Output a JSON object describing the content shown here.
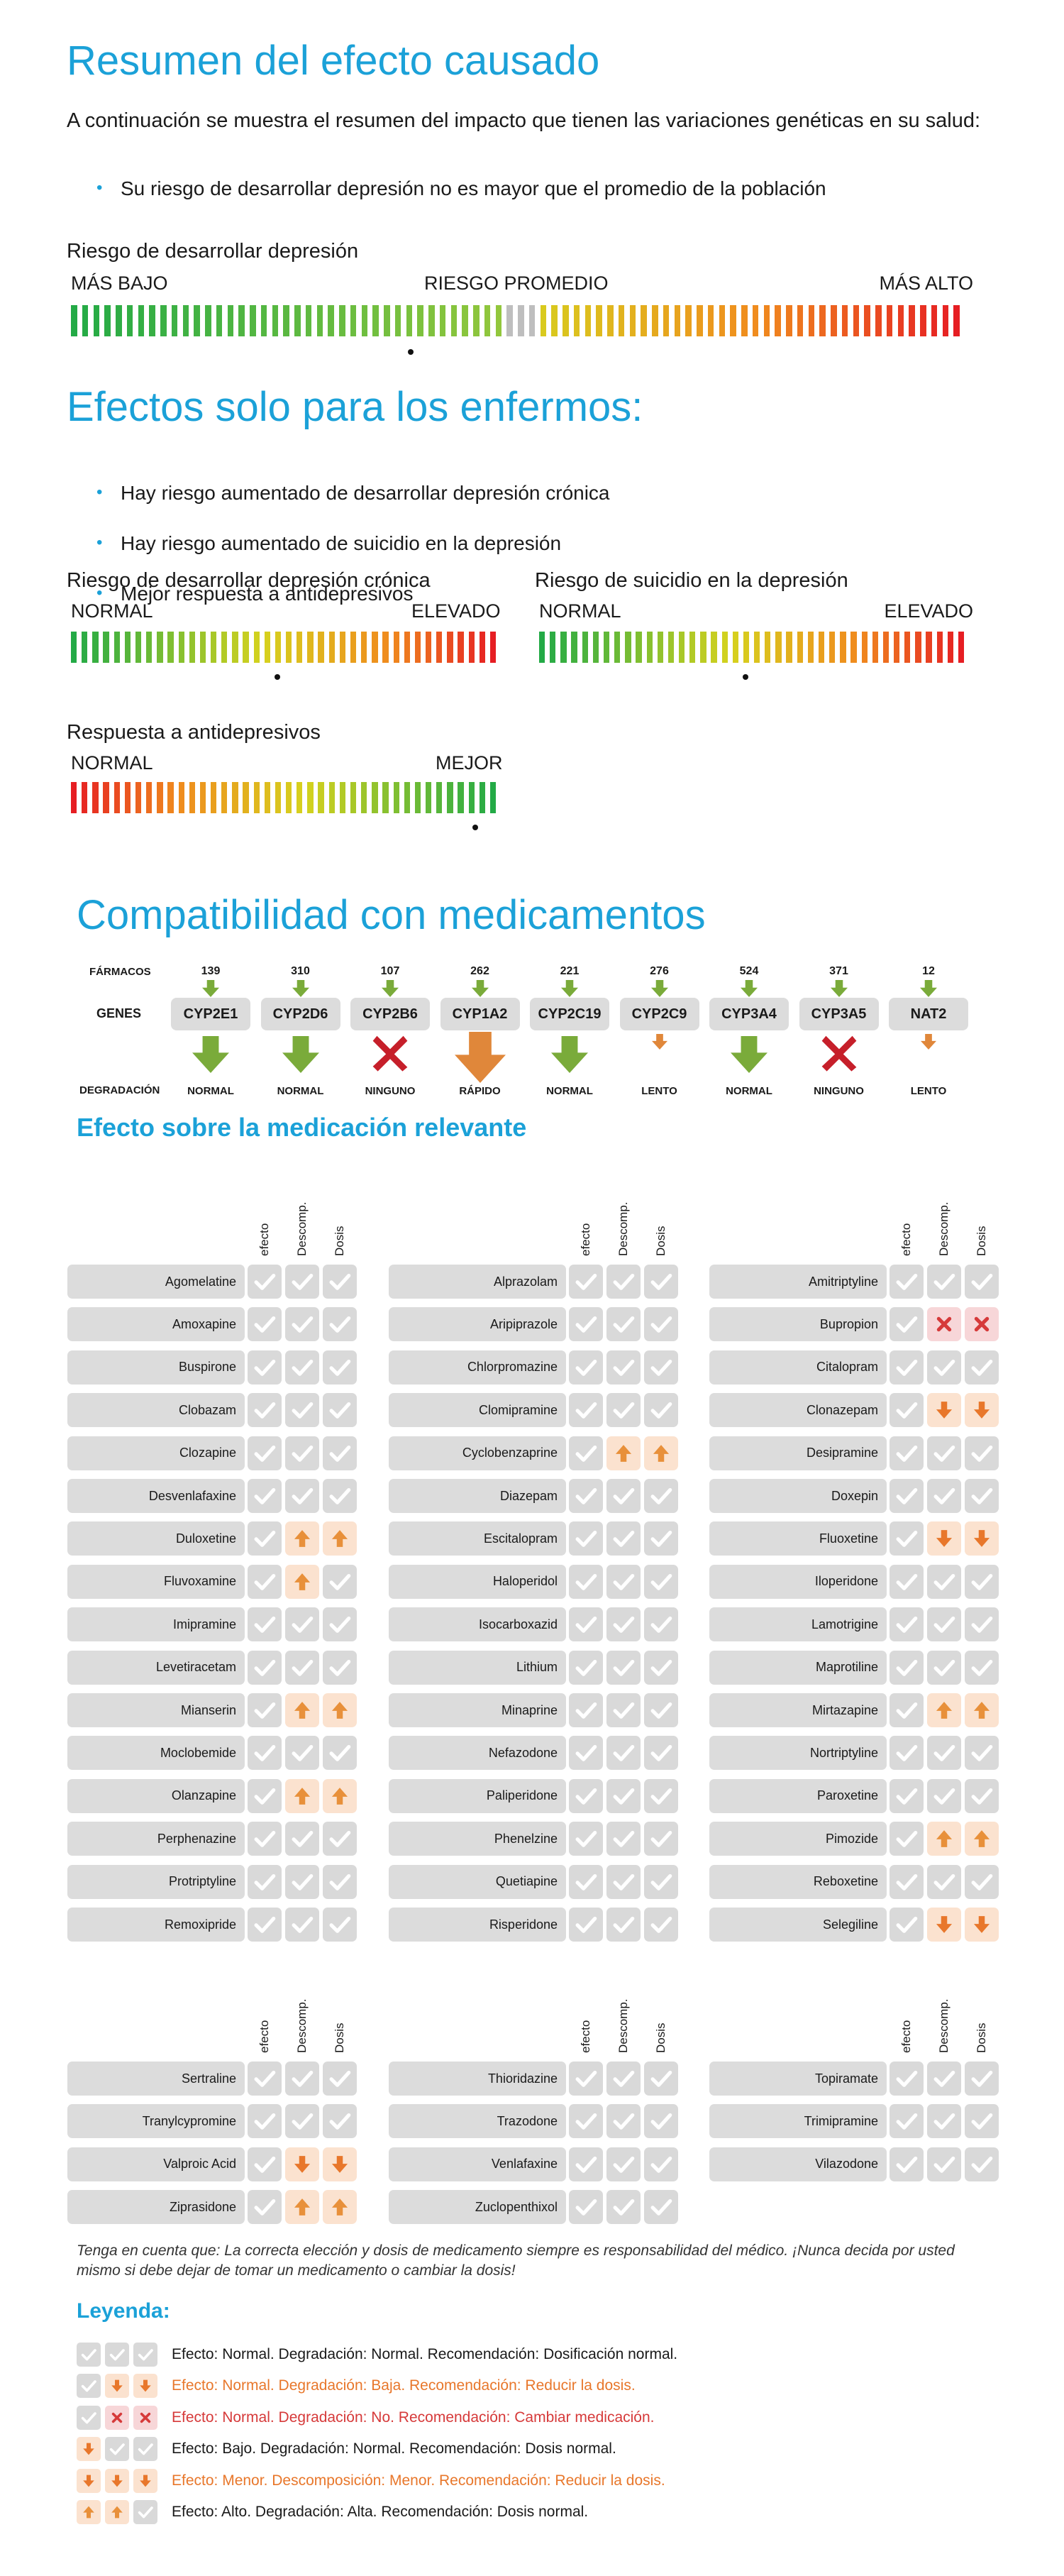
{
  "summary": {
    "title": "Resumen del efecto causado",
    "intro": "A continuación se muestra el resumen del impacto que tienen las variaciones genéticas en su salud:",
    "bullets": [
      "Su riesgo de desarrollar depresión no es mayor que el promedio de la población"
    ]
  },
  "risk_scale": {
    "title": "Riesgo de desarrollar depresión",
    "left": "MÁS BAJO",
    "middle": "RIESGO PROMEDIO",
    "right": "MÁS ALTO",
    "marker_fraction": 0.38
  },
  "patients": {
    "title": "Efectos solo para los enfermos:",
    "bullets": [
      "Hay riesgo aumentado de desarrollar depresión crónica",
      "Hay riesgo aumentado de suicidio en la depresión",
      "Mejor respuesta a antidepresivos"
    ],
    "scales": [
      {
        "title": "Riesgo de desarrollar depresión crónica",
        "left": "NORMAL",
        "right": "ELEVADO",
        "marker_fraction": 0.48
      },
      {
        "title": "Riesgo de suicidio en la depresión",
        "left": "NORMAL",
        "right": "ELEVADO",
        "marker_fraction": 0.48
      },
      {
        "title": "Respuesta a antidepresivos",
        "left": "NORMAL",
        "right": "MEJOR",
        "marker_fraction": 0.94
      }
    ]
  },
  "compat": {
    "title": "Compatibilidad con medicamentos",
    "farmacos_label": "FÁRMACOS",
    "genes_label": "GENES",
    "degradacion_label": "DEGRADACIÓN",
    "genes": [
      {
        "name": "CYP2E1",
        "drugs": "139",
        "deg": "NORMAL",
        "effect": "normal"
      },
      {
        "name": "CYP2D6",
        "drugs": "310",
        "deg": "NORMAL",
        "effect": "normal"
      },
      {
        "name": "CYP2B6",
        "drugs": "107",
        "deg": "NINGUNO",
        "effect": "none"
      },
      {
        "name": "CYP1A2",
        "drugs": "262",
        "deg": "RÁPIDO",
        "effect": "fast"
      },
      {
        "name": "CYP2C19",
        "drugs": "221",
        "deg": "NORMAL",
        "effect": "normal"
      },
      {
        "name": "CYP2C9",
        "drugs": "276",
        "deg": "LENTO",
        "effect": "slow"
      },
      {
        "name": "CYP3A4",
        "drugs": "524",
        "deg": "NORMAL",
        "effect": "normal"
      },
      {
        "name": "CYP3A5",
        "drugs": "371",
        "deg": "NINGUNO",
        "effect": "none"
      },
      {
        "name": "NAT2",
        "drugs": "12",
        "deg": "LENTO",
        "effect": "slow"
      }
    ]
  },
  "medication": {
    "title": "Efecto sobre la medicación relevante",
    "col_headers": [
      "efecto",
      "Descomp.",
      "Dosis"
    ],
    "icon_legend": {
      "ok": "check-icon",
      "up": "arrow-up-icon",
      "down": "arrow-down-icon",
      "x": "cross-icon"
    },
    "colors": {
      "cell": "#d9d9d9",
      "warn_bg": "#fbe2cf",
      "stop_bg": "#f7d6d8",
      "orange": "#e8772b",
      "red": "#d63a3a"
    },
    "groups": [
      [
        [
          {
            "name": "Agomelatine",
            "c": [
              "ok",
              "ok",
              "ok"
            ]
          },
          {
            "name": "Amoxapine",
            "c": [
              "ok",
              "ok",
              "ok"
            ]
          },
          {
            "name": "Buspirone",
            "c": [
              "ok",
              "ok",
              "ok"
            ]
          },
          {
            "name": "Clobazam",
            "c": [
              "ok",
              "ok",
              "ok"
            ]
          },
          {
            "name": "Clozapine",
            "c": [
              "ok",
              "ok",
              "ok"
            ]
          },
          {
            "name": "Desvenlafaxine",
            "c": [
              "ok",
              "ok",
              "ok"
            ]
          },
          {
            "name": "Duloxetine",
            "c": [
              "ok",
              "up",
              "up"
            ]
          },
          {
            "name": "Fluvoxamine",
            "c": [
              "ok",
              "up",
              "ok"
            ]
          },
          {
            "name": "Imipramine",
            "c": [
              "ok",
              "ok",
              "ok"
            ]
          },
          {
            "name": "Levetiracetam",
            "c": [
              "ok",
              "ok",
              "ok"
            ]
          },
          {
            "name": "Mianserin",
            "c": [
              "ok",
              "up",
              "up"
            ]
          },
          {
            "name": "Moclobemide",
            "c": [
              "ok",
              "ok",
              "ok"
            ]
          },
          {
            "name": "Olanzapine",
            "c": [
              "ok",
              "up",
              "up"
            ]
          },
          {
            "name": "Perphenazine",
            "c": [
              "ok",
              "ok",
              "ok"
            ]
          },
          {
            "name": "Protriptyline",
            "c": [
              "ok",
              "ok",
              "ok"
            ]
          },
          {
            "name": "Remoxipride",
            "c": [
              "ok",
              "ok",
              "ok"
            ]
          }
        ],
        [
          {
            "name": "Alprazolam",
            "c": [
              "ok",
              "ok",
              "ok"
            ]
          },
          {
            "name": "Aripiprazole",
            "c": [
              "ok",
              "ok",
              "ok"
            ]
          },
          {
            "name": "Chlorpromazine",
            "c": [
              "ok",
              "ok",
              "ok"
            ]
          },
          {
            "name": "Clomipramine",
            "c": [
              "ok",
              "ok",
              "ok"
            ]
          },
          {
            "name": "Cyclobenzaprine",
            "c": [
              "ok",
              "up",
              "up"
            ]
          },
          {
            "name": "Diazepam",
            "c": [
              "ok",
              "ok",
              "ok"
            ]
          },
          {
            "name": "Escitalopram",
            "c": [
              "ok",
              "ok",
              "ok"
            ]
          },
          {
            "name": "Haloperidol",
            "c": [
              "ok",
              "ok",
              "ok"
            ]
          },
          {
            "name": "Isocarboxazid",
            "c": [
              "ok",
              "ok",
              "ok"
            ]
          },
          {
            "name": "Lithium",
            "c": [
              "ok",
              "ok",
              "ok"
            ]
          },
          {
            "name": "Minaprine",
            "c": [
              "ok",
              "ok",
              "ok"
            ]
          },
          {
            "name": "Nefazodone",
            "c": [
              "ok",
              "ok",
              "ok"
            ]
          },
          {
            "name": "Paliperidone",
            "c": [
              "ok",
              "ok",
              "ok"
            ]
          },
          {
            "name": "Phenelzine",
            "c": [
              "ok",
              "ok",
              "ok"
            ]
          },
          {
            "name": "Quetiapine",
            "c": [
              "ok",
              "ok",
              "ok"
            ]
          },
          {
            "name": "Risperidone",
            "c": [
              "ok",
              "ok",
              "ok"
            ]
          }
        ],
        [
          {
            "name": "Amitriptyline",
            "c": [
              "ok",
              "ok",
              "ok"
            ]
          },
          {
            "name": "Bupropion",
            "c": [
              "ok",
              "x",
              "x"
            ]
          },
          {
            "name": "Citalopram",
            "c": [
              "ok",
              "ok",
              "ok"
            ]
          },
          {
            "name": "Clonazepam",
            "c": [
              "ok",
              "down",
              "down"
            ]
          },
          {
            "name": "Desipramine",
            "c": [
              "ok",
              "ok",
              "ok"
            ]
          },
          {
            "name": "Doxepin",
            "c": [
              "ok",
              "ok",
              "ok"
            ]
          },
          {
            "name": "Fluoxetine",
            "c": [
              "ok",
              "down",
              "down"
            ]
          },
          {
            "name": "Iloperidone",
            "c": [
              "ok",
              "ok",
              "ok"
            ]
          },
          {
            "name": "Lamotrigine",
            "c": [
              "ok",
              "ok",
              "ok"
            ]
          },
          {
            "name": "Maprotiline",
            "c": [
              "ok",
              "ok",
              "ok"
            ]
          },
          {
            "name": "Mirtazapine",
            "c": [
              "ok",
              "up",
              "up"
            ]
          },
          {
            "name": "Nortriptyline",
            "c": [
              "ok",
              "ok",
              "ok"
            ]
          },
          {
            "name": "Paroxetine",
            "c": [
              "ok",
              "ok",
              "ok"
            ]
          },
          {
            "name": "Pimozide",
            "c": [
              "ok",
              "up",
              "up"
            ]
          },
          {
            "name": "Reboxetine",
            "c": [
              "ok",
              "ok",
              "ok"
            ]
          },
          {
            "name": "Selegiline",
            "c": [
              "ok",
              "down",
              "down"
            ]
          }
        ]
      ],
      [
        [
          {
            "name": "Sertraline",
            "c": [
              "ok",
              "ok",
              "ok"
            ]
          },
          {
            "name": "Tranylcypromine",
            "c": [
              "ok",
              "ok",
              "ok"
            ]
          },
          {
            "name": "Valproic Acid",
            "c": [
              "ok",
              "down",
              "down"
            ]
          },
          {
            "name": "Ziprasidone",
            "c": [
              "ok",
              "up",
              "up"
            ]
          }
        ],
        [
          {
            "name": "Thioridazine",
            "c": [
              "ok",
              "ok",
              "ok"
            ]
          },
          {
            "name": "Trazodone",
            "c": [
              "ok",
              "ok",
              "ok"
            ]
          },
          {
            "name": "Venlafaxine",
            "c": [
              "ok",
              "ok",
              "ok"
            ]
          },
          {
            "name": "Zuclopenthixol",
            "c": [
              "ok",
              "ok",
              "ok"
            ]
          }
        ],
        [
          {
            "name": "Topiramate",
            "c": [
              "ok",
              "ok",
              "ok"
            ]
          },
          {
            "name": "Trimipramine",
            "c": [
              "ok",
              "ok",
              "ok"
            ]
          },
          {
            "name": "Vilazodone",
            "c": [
              "ok",
              "ok",
              "ok"
            ]
          }
        ]
      ]
    ]
  },
  "note": "Tenga en cuenta que: La correcta elección y dosis de medicamento siempre es responsabilidad del médico. ¡Nunca decida por usted mismo si debe dejar de tomar un medicamento o cambiar la dosis!",
  "legend": {
    "title": "Leyenda:",
    "items": [
      {
        "c": [
          "ok",
          "ok",
          "ok"
        ],
        "text": "Efecto: Normal. Degradación: Normal. Recomendación: Dosificación normal.",
        "tone": "normal"
      },
      {
        "c": [
          "ok",
          "down",
          "down"
        ],
        "text": "Efecto: Normal. Degradación: Baja. Recomendación: Reducir la dosis.",
        "tone": "orange"
      },
      {
        "c": [
          "ok",
          "x",
          "x"
        ],
        "text": "Efecto: Normal. Degradación: No. Recomendación: Cambiar medicación.",
        "tone": "red"
      },
      {
        "c": [
          "down",
          "ok",
          "ok"
        ],
        "text": "Efecto: Bajo. Degradación: Normal. Recomendación: Dosis normal.",
        "tone": "normal"
      },
      {
        "c": [
          "down",
          "down",
          "down"
        ],
        "text": "Efecto: Menor. Descomposición: Menor. Recomendación: Reducir la dosis.",
        "tone": "orange"
      },
      {
        "c": [
          "up",
          "up",
          "ok"
        ],
        "text": "Efecto: Alto. Degradación: Alta. Recomendación: Dosis normal.",
        "tone": "normal"
      }
    ]
  }
}
